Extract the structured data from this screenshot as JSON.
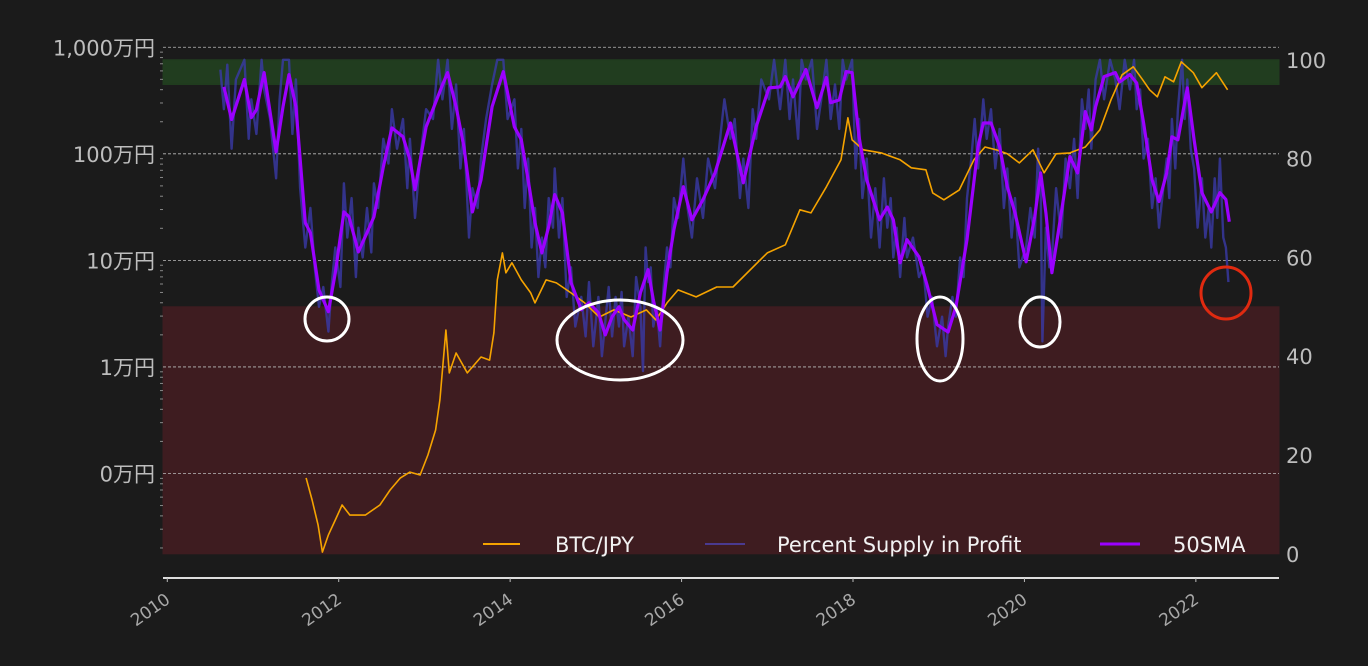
{
  "chart_data": {
    "type": "line",
    "title": "",
    "xlabel": "",
    "ylabel_left": "",
    "ylabel_right": "",
    "xlim": [
      2009.95,
      2022.97
    ],
    "ylim_left": [
      104.5,
      11700000
    ],
    "ylim_left_scale": "log",
    "ylim_right": [
      -4.9,
      104
    ],
    "grid": "horizontal dashed lines at left-axis ticks",
    "legend_position": "bottom-right",
    "x_ticks": [
      "2010",
      "2012",
      "2014",
      "2016",
      "2018",
      "2020",
      "2022"
    ],
    "x_tick_values": [
      2010,
      2012,
      2014,
      2016,
      2018,
      2020,
      2022
    ],
    "left_ticks": [
      {
        "value": 10000000,
        "label": "1,000万円"
      },
      {
        "value": 1000000,
        "label": "100万円"
      },
      {
        "value": 100000,
        "label": "10万円"
      },
      {
        "value": 10000,
        "label": "1万円"
      },
      {
        "value": 1000,
        "label": "0万円"
      }
    ],
    "right_ticks": [
      {
        "value": 100,
        "label": "100"
      },
      {
        "value": 80,
        "label": "80"
      },
      {
        "value": 60,
        "label": "60"
      },
      {
        "value": 40,
        "label": "40"
      },
      {
        "value": 20,
        "label": "20"
      },
      {
        "value": 0,
        "label": "0"
      }
    ],
    "bands": [
      {
        "axis": "right",
        "from": 95,
        "to": 100,
        "color": "#213d1f"
      },
      {
        "axis": "right",
        "from": 0,
        "to": 50,
        "color": "#3e1c20"
      }
    ],
    "colors": {
      "background": "#1b1b1b",
      "btc": "#f5a300",
      "supply": "#3a3aa8",
      "sma": "#9b00ff",
      "highlight": "#ffffff",
      "alert": "#e02a10"
    },
    "series": [
      {
        "name": "BTC/JPY",
        "axis": "left",
        "color": "#f5a300",
        "x": [
          2011.62,
          2011.69,
          2011.76,
          2011.81,
          2011.88,
          2011.96,
          2012.04,
          2012.13,
          2012.31,
          2012.48,
          2012.6,
          2012.72,
          2012.83,
          2012.95,
          2013.04,
          2013.13,
          2013.18,
          2013.25,
          2013.29,
          2013.37,
          2013.5,
          2013.66,
          2013.76,
          2013.81,
          2013.85,
          2013.91,
          2013.95,
          2014.02,
          2014.13,
          2014.24,
          2014.29,
          2014.42,
          2014.54,
          2014.71,
          2014.87,
          2015.04,
          2015.21,
          2015.41,
          2015.59,
          2015.7,
          2015.83,
          2015.96,
          2016.17,
          2016.41,
          2016.6,
          2017.0,
          2017.21,
          2017.38,
          2017.51,
          2017.69,
          2017.86,
          2017.94,
          2017.99,
          2018.12,
          2018.33,
          2018.55,
          2018.68,
          2018.85,
          2018.93,
          2019.06,
          2019.24,
          2019.41,
          2019.54,
          2019.67,
          2019.8,
          2019.94,
          2020.1,
          2020.23,
          2020.37,
          2020.53,
          2020.71,
          2020.88,
          2021.01,
          2021.14,
          2021.27,
          2021.38,
          2021.46,
          2021.55,
          2021.64,
          2021.74,
          2021.83,
          2021.97,
          2022.07,
          2022.24,
          2022.37
        ],
        "y": [
          908,
          564,
          328,
          183,
          265,
          366,
          506,
          407,
          407,
          506,
          700,
          908,
          1030,
          968,
          1490,
          2560,
          4900,
          22200,
          8790,
          13500,
          8790,
          12400,
          11600,
          20900,
          65600,
          117500,
          76400,
          94800,
          65600,
          49500,
          39900,
          65600,
          61500,
          49500,
          39900,
          29400,
          34300,
          29400,
          34300,
          27600,
          39900,
          52800,
          45400,
          56300,
          56300,
          117500,
          140000,
          298000,
          279000,
          490000,
          879000,
          2180000,
          1350000,
          1090000,
          1020000,
          879000,
          740000,
          708000,
          430000,
          370000,
          459000,
          879000,
          1160000,
          1090000,
          1000000,
          822000,
          1090000,
          663000,
          1000000,
          1020000,
          1160000,
          1680000,
          3210000,
          5520000,
          6560000,
          4950000,
          3990000,
          3430000,
          5280000,
          4740000,
          7310000,
          5770000,
          4170000,
          5770000,
          3990000
        ]
      },
      {
        "name": "Percent Supply in Profit",
        "axis": "right",
        "color": "#3a3aa8",
        "x": [
          2010.62,
          2010.66,
          2010.7,
          2010.75,
          2010.8,
          2010.9,
          2010.95,
          2010.98,
          2011.04,
          2011.1,
          2011.13,
          2011.2,
          2011.27,
          2011.31,
          2011.35,
          2011.42,
          2011.46,
          2011.5,
          2011.55,
          2011.61,
          2011.67,
          2011.72,
          2011.77,
          2011.82,
          2011.88,
          2011.92,
          2011.96,
          2012.02,
          2012.06,
          2012.1,
          2012.15,
          2012.2,
          2012.23,
          2012.28,
          2012.33,
          2012.38,
          2012.41,
          2012.46,
          2012.52,
          2012.58,
          2012.62,
          2012.68,
          2012.75,
          2012.8,
          2012.83,
          2012.89,
          2012.95,
          2013.02,
          2013.1,
          2013.16,
          2013.21,
          2013.27,
          2013.32,
          2013.37,
          2013.42,
          2013.46,
          2013.52,
          2013.56,
          2013.62,
          2013.66,
          2013.72,
          2013.79,
          2013.85,
          2013.92,
          2013.97,
          2014.05,
          2014.09,
          2014.13,
          2014.17,
          2014.21,
          2014.25,
          2014.29,
          2014.33,
          2014.37,
          2014.41,
          2014.45,
          2014.5,
          2014.52,
          2014.57,
          2014.61,
          2014.66,
          2014.71,
          2014.76,
          2014.83,
          2014.88,
          2014.92,
          2014.97,
          2015.03,
          2015.07,
          2015.11,
          2015.15,
          2015.19,
          2015.23,
          2015.27,
          2015.3,
          2015.33,
          2015.38,
          2015.43,
          2015.47,
          2015.52,
          2015.55,
          2015.58,
          2015.61,
          2015.64,
          2015.67,
          2015.71,
          2015.75,
          2015.79,
          2015.83,
          2015.87,
          2015.91,
          2015.96,
          2016.02,
          2016.07,
          2016.12,
          2016.18,
          2016.25,
          2016.31,
          2016.39,
          2016.45,
          2016.5,
          2016.57,
          2016.62,
          2016.68,
          2016.72,
          2016.78,
          2016.83,
          2016.87,
          2016.93,
          2017.02,
          2017.08,
          2017.15,
          2017.21,
          2017.26,
          2017.3,
          2017.36,
          2017.4,
          2017.45,
          2017.52,
          2017.58,
          2017.63,
          2017.69,
          2017.74,
          2017.79,
          2017.84,
          2017.88,
          2017.92,
          2017.99,
          2018.03,
          2018.07,
          2018.11,
          2018.16,
          2018.21,
          2018.26,
          2018.31,
          2018.36,
          2018.4,
          2018.44,
          2018.47,
          2018.51,
          2018.55,
          2018.6,
          2018.63,
          2018.7,
          2018.77,
          2018.82,
          2018.87,
          2018.92,
          2018.98,
          2019.04,
          2019.08,
          2019.11,
          2019.16,
          2019.2,
          2019.25,
          2019.29,
          2019.33,
          2019.38,
          2019.42,
          2019.46,
          2019.52,
          2019.56,
          2019.61,
          2019.66,
          2019.71,
          2019.76,
          2019.8,
          2019.85,
          2019.89,
          2019.94,
          2020.02,
          2020.07,
          2020.12,
          2020.16,
          2020.19,
          2020.21,
          2020.25,
          2020.29,
          2020.32,
          2020.37,
          2020.43,
          2020.48,
          2020.53,
          2020.58,
          2020.62,
          2020.67,
          2020.71,
          2020.75,
          2020.78,
          2020.83,
          2020.88,
          2020.93,
          2021.0,
          2021.06,
          2021.11,
          2021.17,
          2021.23,
          2021.28,
          2021.31,
          2021.35,
          2021.39,
          2021.44,
          2021.49,
          2021.53,
          2021.57,
          2021.62,
          2021.66,
          2021.69,
          2021.72,
          2021.76,
          2021.79,
          2021.84,
          2021.87,
          2021.9,
          2021.94,
          2021.98,
          2022.02,
          2022.07,
          2022.11,
          2022.15,
          2022.18,
          2022.22,
          2022.25,
          2022.28,
          2022.32,
          2022.35,
          2022.38
        ],
        "y": [
          98,
          90,
          99,
          82,
          96,
          100,
          84,
          92,
          85,
          100,
          94,
          88,
          76,
          92,
          100,
          100,
          85,
          96,
          74,
          62,
          70,
          58,
          50,
          54,
          45,
          55,
          62,
          54,
          75,
          64,
          72,
          56,
          66,
          60,
          70,
          61,
          75,
          70,
          84,
          79,
          90,
          82,
          88,
          74,
          84,
          68,
          80,
          90,
          88,
          100,
          92,
          100,
          86,
          95,
          78,
          86,
          64,
          74,
          70,
          80,
          88,
          95,
          100,
          100,
          88,
          92,
          78,
          86,
          70,
          80,
          62,
          70,
          56,
          64,
          58,
          72,
          66,
          78,
          64,
          72,
          52,
          58,
          46,
          52,
          44,
          55,
          42,
          52,
          40,
          47,
          54,
          44,
          52,
          46,
          53,
          42,
          48,
          40,
          56,
          50,
          37,
          62,
          55,
          58,
          46,
          50,
          42,
          54,
          62,
          58,
          72,
          68,
          80,
          70,
          64,
          76,
          68,
          80,
          74,
          84,
          92,
          84,
          88,
          72,
          80,
          70,
          90,
          84,
          96,
          92,
          100,
          90,
          100,
          88,
          96,
          84,
          100,
          96,
          100,
          86,
          92,
          100,
          88,
          95,
          86,
          100,
          96,
          100,
          78,
          88,
          72,
          80,
          64,
          74,
          62,
          76,
          66,
          72,
          60,
          66,
          56,
          68,
          60,
          64,
          56,
          58,
          48,
          52,
          42,
          48,
          40,
          46,
          52,
          48,
          60,
          56,
          72,
          80,
          88,
          78,
          92,
          84,
          90,
          78,
          86,
          70,
          78,
          64,
          72,
          58,
          62,
          70,
          64,
          82,
          74,
          43,
          66,
          58,
          60,
          74,
          64,
          80,
          74,
          84,
          72,
          92,
          86,
          94,
          82,
          96,
          100,
          92,
          100,
          96,
          90,
          100,
          94,
          100,
          90,
          94,
          80,
          84,
          70,
          76,
          66,
          74,
          80,
          72,
          88,
          78,
          90,
          100,
          88,
          96,
          82,
          78,
          66,
          76,
          64,
          70,
          62,
          76,
          68,
          80,
          64,
          62,
          55
        ]
      },
      {
        "name": "50SMA",
        "axis": "right",
        "color": "#9b00ff",
        "x": [
          2010.66,
          2010.75,
          2010.9,
          2010.98,
          2011.04,
          2011.13,
          2011.27,
          2011.35,
          2011.42,
          2011.5,
          2011.61,
          2011.67,
          2011.77,
          2011.88,
          2011.96,
          2012.06,
          2012.12,
          2012.23,
          2012.33,
          2012.41,
          2012.52,
          2012.62,
          2012.75,
          2012.83,
          2012.89,
          2013.02,
          2013.21,
          2013.27,
          2013.37,
          2013.46,
          2013.56,
          2013.66,
          2013.79,
          2013.92,
          2014.05,
          2014.13,
          2014.21,
          2014.29,
          2014.37,
          2014.45,
          2014.52,
          2014.61,
          2014.71,
          2014.83,
          2014.92,
          2015.03,
          2015.11,
          2015.19,
          2015.27,
          2015.33,
          2015.43,
          2015.52,
          2015.61,
          2015.67,
          2015.75,
          2015.83,
          2015.91,
          2016.02,
          2016.12,
          2016.25,
          2016.39,
          2016.57,
          2016.72,
          2016.87,
          2017.02,
          2017.15,
          2017.21,
          2017.3,
          2017.45,
          2017.58,
          2017.69,
          2017.74,
          2017.84,
          2017.92,
          2017.99,
          2018.07,
          2018.16,
          2018.31,
          2018.4,
          2018.47,
          2018.55,
          2018.63,
          2018.77,
          2018.87,
          2018.98,
          2019.11,
          2019.2,
          2019.33,
          2019.46,
          2019.52,
          2019.61,
          2019.71,
          2019.8,
          2019.89,
          2020.02,
          2020.12,
          2020.19,
          2020.25,
          2020.32,
          2020.43,
          2020.53,
          2020.62,
          2020.71,
          2020.78,
          2020.83,
          2020.93,
          2021.06,
          2021.11,
          2021.23,
          2021.31,
          2021.39,
          2021.49,
          2021.57,
          2021.66,
          2021.72,
          2021.79,
          2021.9,
          2021.98,
          2022.07,
          2022.18,
          2022.28,
          2022.35,
          2022.39
        ],
        "y": [
          94.5,
          87.9,
          96.0,
          88.3,
          89.9,
          97.4,
          81.4,
          90.5,
          97.0,
          90.5,
          67.0,
          65.0,
          53.4,
          49.0,
          56.9,
          69.2,
          68.2,
          61.1,
          65.0,
          68.2,
          78.3,
          86.2,
          84.4,
          79.8,
          73.7,
          86.4,
          94.9,
          97.4,
          90.5,
          82.4,
          69.2,
          75.7,
          90.5,
          97.6,
          86.4,
          83.8,
          75.7,
          67.0,
          60.9,
          66.2,
          72.7,
          69.0,
          54.9,
          49.4,
          50.8,
          48.8,
          44.3,
          48.0,
          50.0,
          47.4,
          45.3,
          52.8,
          57.5,
          51.4,
          45.3,
          56.9,
          65.6,
          74.3,
          67.6,
          71.7,
          77.1,
          87.2,
          75.1,
          86.4,
          94.3,
          94.5,
          96.6,
          92.5,
          98.0,
          90.3,
          96.4,
          91.3,
          91.9,
          97.6,
          97.4,
          84.4,
          75.7,
          67.6,
          70.2,
          67.6,
          58.9,
          63.6,
          60.1,
          54.0,
          46.4,
          44.9,
          50.0,
          63.6,
          82.4,
          87.2,
          87.2,
          82.4,
          74.3,
          69.0,
          59.1,
          68.2,
          77.1,
          69.0,
          56.9,
          69.0,
          80.4,
          77.1,
          89.5,
          85.8,
          90.5,
          96.6,
          97.4,
          95.5,
          97.0,
          95.3,
          87.2,
          75.7,
          71.3,
          77.1,
          84.4,
          83.8,
          94.3,
          83.8,
          73.1,
          69.2,
          73.1,
          71.7,
          67.2
        ]
      }
    ]
  }
}
